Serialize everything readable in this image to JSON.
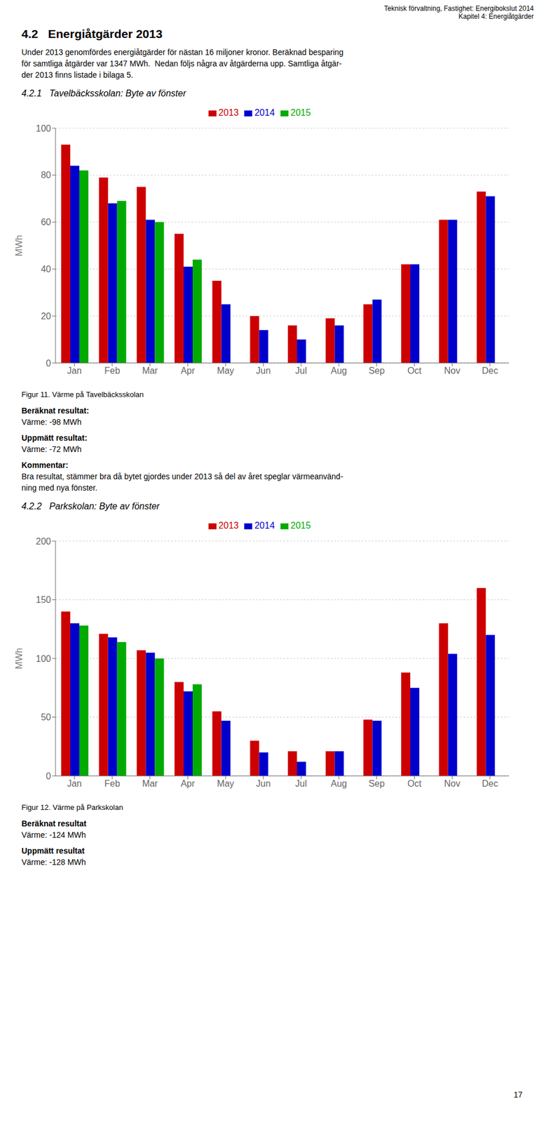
{
  "title": "4.2   Energiåtgärder 2013",
  "annotations": [
    "Teknisk förvaltning, Fastighet: Energibokslut 2014",
    "Kapitel 4: Energiåtgärder",
    "Under 2013 genomfördes energiåtgärder för nästan 16 miljoner kronor. Beräknad besparing",
    "för samtliga åtgärder var 1347 MWh.  Nedan följs några av åtgärderna upp. Samtliga åtgär-",
    "der 2013 finns listade i bilaga 5.",
    "17"
  ],
  "chart_data": [
    {
      "type": "bar",
      "title": "4.2.1   Tavelbäcksskolan: Byte av fönster",
      "ylabel": "MWh",
      "categories": [
        "Jan",
        "Feb",
        "Mar",
        "Apr",
        "May",
        "Jun",
        "Jul",
        "Aug",
        "Sep",
        "Oct",
        "Nov",
        "Dec"
      ],
      "series": [
        {
          "name": "2013",
          "color": "#cc0000",
          "values": [
            93,
            79,
            75,
            55,
            35,
            20,
            16,
            19,
            25,
            42,
            61,
            73
          ]
        },
        {
          "name": "2014",
          "color": "#0000cc",
          "values": [
            84,
            68,
            61,
            41,
            25,
            14,
            10,
            16,
            27,
            42,
            61,
            71
          ]
        },
        {
          "name": "2015",
          "color": "#00aa00",
          "values": [
            82,
            69,
            60,
            44,
            0,
            0,
            0,
            0,
            0,
            0,
            0,
            0
          ]
        }
      ],
      "ylim": [
        0,
        100
      ],
      "yticks": [
        0,
        20,
        40,
        60,
        80,
        100
      ],
      "grid": true,
      "legend": "top",
      "annotations": [
        "Figur 11. Värme på Tavelbäcksskolan",
        "Beräknat resultat:",
        "Värme: -98 MWh",
        "Uppmätt resultat:",
        "Värme: -72 MWh",
        "Kommentar:",
        "Bra resultat, stämmer bra då bytet gjordes under 2013 så del av året speglar värmeanvänd-",
        "ning med nya fönster."
      ]
    },
    {
      "type": "bar",
      "title": "4.2.2   Parkskolan: Byte av fönster",
      "ylabel": "MWh",
      "categories": [
        "Jan",
        "Feb",
        "Mar",
        "Apr",
        "May",
        "Jun",
        "Jul",
        "Aug",
        "Sep",
        "Oct",
        "Nov",
        "Dec"
      ],
      "series": [
        {
          "name": "2013",
          "color": "#cc0000",
          "values": [
            140,
            121,
            107,
            80,
            55,
            30,
            21,
            21,
            48,
            88,
            130,
            160
          ]
        },
        {
          "name": "2014",
          "color": "#0000cc",
          "values": [
            130,
            118,
            105,
            72,
            47,
            20,
            12,
            21,
            47,
            75,
            104,
            120
          ]
        },
        {
          "name": "2015",
          "color": "#00aa00",
          "values": [
            128,
            114,
            100,
            78,
            0,
            0,
            0,
            0,
            0,
            0,
            0,
            0
          ]
        }
      ],
      "ylim": [
        0,
        200
      ],
      "yticks": [
        0,
        50,
        100,
        150,
        200
      ],
      "grid": true,
      "legend": "top",
      "annotations": [
        "Figur 12. Värme på Parkskolan",
        "Beräknat resultat",
        "Värme: -124 MWh",
        "Uppmätt resultat",
        "Värme: -128 MWh"
      ]
    }
  ]
}
